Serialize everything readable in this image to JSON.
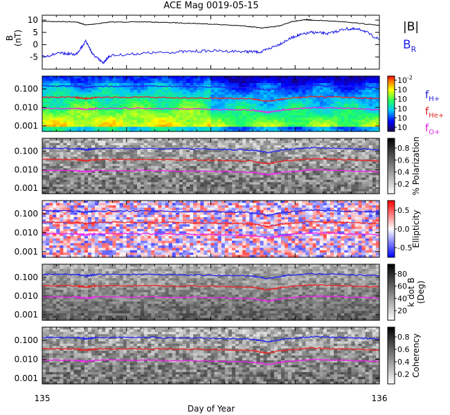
{
  "page_title": "ACE Mag 0019-05-15",
  "xaxis": {
    "label": "Day of Year",
    "ticks": [
      "135",
      "136"
    ],
    "range": [
      135,
      136
    ]
  },
  "legend": {
    "mag": [
      {
        "label": "|B|",
        "color": "#000000"
      },
      {
        "label": "B",
        "sub": "R",
        "color": "#1a1ae6"
      }
    ],
    "freq": [
      {
        "label": "f",
        "sub": "H+",
        "color": "#2222dd"
      },
      {
        "label": "f",
        "sub": "He+",
        "color": "#dd2222"
      },
      {
        "label": "f",
        "sub": "O+",
        "color": "#dd22dd"
      }
    ]
  },
  "chart_data": [
    {
      "type": "line",
      "name": "mag",
      "ylabel": "B",
      "yunit": "(nT)",
      "ylim": [
        -10,
        12
      ],
      "yticks": [
        "10",
        "5",
        "0",
        "-5"
      ],
      "series": [
        {
          "name": "|B|",
          "color": "#000000",
          "x": [
            135.0,
            135.1,
            135.13,
            135.2,
            135.3,
            135.4,
            135.5,
            135.6,
            135.65,
            135.7,
            135.74,
            135.78,
            135.8,
            135.9,
            136.0
          ],
          "y": [
            9.5,
            9.3,
            8.0,
            9.2,
            9.3,
            8.9,
            8.4,
            7.6,
            6.8,
            7.5,
            9.4,
            10.2,
            10.0,
            9.3,
            7.8
          ]
        },
        {
          "name": "B_R",
          "color": "#1a1ae6",
          "x": [
            135.0,
            135.05,
            135.1,
            135.13,
            135.15,
            135.18,
            135.2,
            135.3,
            135.4,
            135.5,
            135.6,
            135.65,
            135.7,
            135.75,
            135.8,
            135.85,
            135.9,
            135.95,
            136.0
          ],
          "y": [
            -5.0,
            -3.5,
            -4.0,
            1.5,
            -4.0,
            -7.5,
            -4.5,
            -3.5,
            -3.0,
            -2.5,
            -2.8,
            -3.0,
            0.0,
            3.5,
            5.0,
            4.5,
            6.5,
            6.0,
            2.0
          ]
        }
      ]
    },
    {
      "type": "heatmap",
      "name": "power",
      "ylim": [
        0.0005,
        0.5
      ],
      "yticks": [
        "0.100",
        "0.010",
        "0.001"
      ],
      "colorbar": {
        "labels": [
          "10",
          "10",
          "10",
          "10",
          "10",
          "10"
        ],
        "exponents": [
          "-2",
          "",
          "",
          "",
          "",
          ""
        ]
      }
    },
    {
      "type": "heatmap",
      "name": "polarization",
      "ylim": [
        0.0005,
        0.5
      ],
      "yticks": [
        "0.100",
        "0.010",
        "0.001"
      ],
      "colorbar": {
        "label": "% Polarization",
        "ticks": [
          "0.8",
          "0.6",
          "0.4",
          "0.2"
        ]
      }
    },
    {
      "type": "heatmap",
      "name": "ellipticity",
      "ylim": [
        0.0005,
        0.5
      ],
      "yticks": [
        "0.100",
        "0.010",
        "0.001"
      ],
      "colorbar": {
        "label": "Ellipticity",
        "ticks": [
          "0.5",
          "0.0",
          "-0.5"
        ]
      }
    },
    {
      "type": "heatmap",
      "name": "kdotb",
      "ylim": [
        0.0005,
        0.5
      ],
      "yticks": [
        "0.100",
        "0.010",
        "0.001"
      ],
      "colorbar": {
        "label": "k dot B",
        "unit": "(Deg)",
        "ticks": [
          "80",
          "60",
          "40",
          "20"
        ]
      }
    },
    {
      "type": "heatmap",
      "name": "coherency",
      "ylim": [
        0.0005,
        0.5
      ],
      "yticks": [
        "0.100",
        "0.010",
        "0.001"
      ],
      "colorbar": {
        "label": "Coherency",
        "ticks": [
          "0.8",
          "0.6",
          "0.4",
          "0.2"
        ]
      }
    }
  ],
  "gyro_lines": [
    {
      "name": "f_H+",
      "color": "#2222ee",
      "x": [
        135.0,
        135.1,
        135.13,
        135.16,
        135.3,
        135.5,
        135.62,
        135.67,
        135.72,
        135.8,
        135.9,
        136.0
      ],
      "y": [
        0.145,
        0.14,
        0.12,
        0.14,
        0.142,
        0.13,
        0.115,
        0.085,
        0.12,
        0.155,
        0.14,
        0.12
      ]
    },
    {
      "name": "f_He+",
      "color": "#ee2222",
      "x": [
        135.0,
        135.1,
        135.13,
        135.16,
        135.3,
        135.5,
        135.62,
        135.67,
        135.72,
        135.8,
        135.9,
        136.0
      ],
      "y": [
        0.036,
        0.035,
        0.03,
        0.035,
        0.0355,
        0.0325,
        0.029,
        0.021,
        0.03,
        0.039,
        0.035,
        0.03
      ]
    },
    {
      "name": "f_O+",
      "color": "#ee22ee",
      "x": [
        135.0,
        135.1,
        135.13,
        135.16,
        135.3,
        135.5,
        135.62,
        135.67,
        135.72,
        135.8,
        135.9,
        136.0
      ],
      "y": [
        0.009,
        0.0088,
        0.0075,
        0.0088,
        0.0089,
        0.0081,
        0.0072,
        0.0053,
        0.0075,
        0.0097,
        0.0088,
        0.0075
      ]
    }
  ]
}
